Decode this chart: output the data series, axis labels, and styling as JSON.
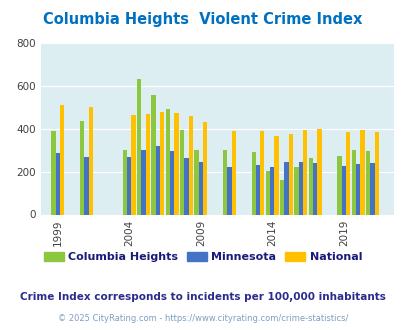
{
  "title": "Columbia Heights  Violent Crime Index",
  "subtitle": "Crime Index corresponds to incidents per 100,000 inhabitants",
  "footer": "© 2025 CityRating.com - https://www.cityrating.com/crime-statistics/",
  "years": [
    1999,
    2001,
    2004,
    2005,
    2006,
    2007,
    2008,
    2009,
    2011,
    2013,
    2014,
    2015,
    2016,
    2017,
    2019,
    2020,
    2021
  ],
  "columbia_heights": [
    390,
    435,
    300,
    630,
    555,
    490,
    395,
    300,
    300,
    290,
    205,
    160,
    220,
    265,
    275,
    300,
    295
  ],
  "minnesota": [
    285,
    270,
    270,
    300,
    320,
    295,
    265,
    245,
    220,
    230,
    220,
    245,
    245,
    240,
    225,
    235,
    240
  ],
  "national": [
    510,
    500,
    465,
    470,
    480,
    475,
    460,
    430,
    390,
    390,
    365,
    375,
    395,
    400,
    385,
    395,
    385
  ],
  "color_ch": "#8dc63f",
  "color_mn": "#4472c4",
  "color_nat": "#ffc000",
  "bg_color": "#ddeef3",
  "ylim": [
    0,
    800
  ],
  "yticks": [
    0,
    200,
    400,
    600,
    800
  ],
  "xtick_years": [
    1999,
    2004,
    2009,
    2014,
    2019
  ],
  "xlim": [
    1997.8,
    2022.5
  ],
  "bar_width": 0.3,
  "title_color": "#0070c0",
  "subtitle_color": "#2c2c8c",
  "footer_color": "#7f9fbf",
  "legend_labels": [
    "Columbia Heights",
    "Minnesota",
    "National"
  ]
}
